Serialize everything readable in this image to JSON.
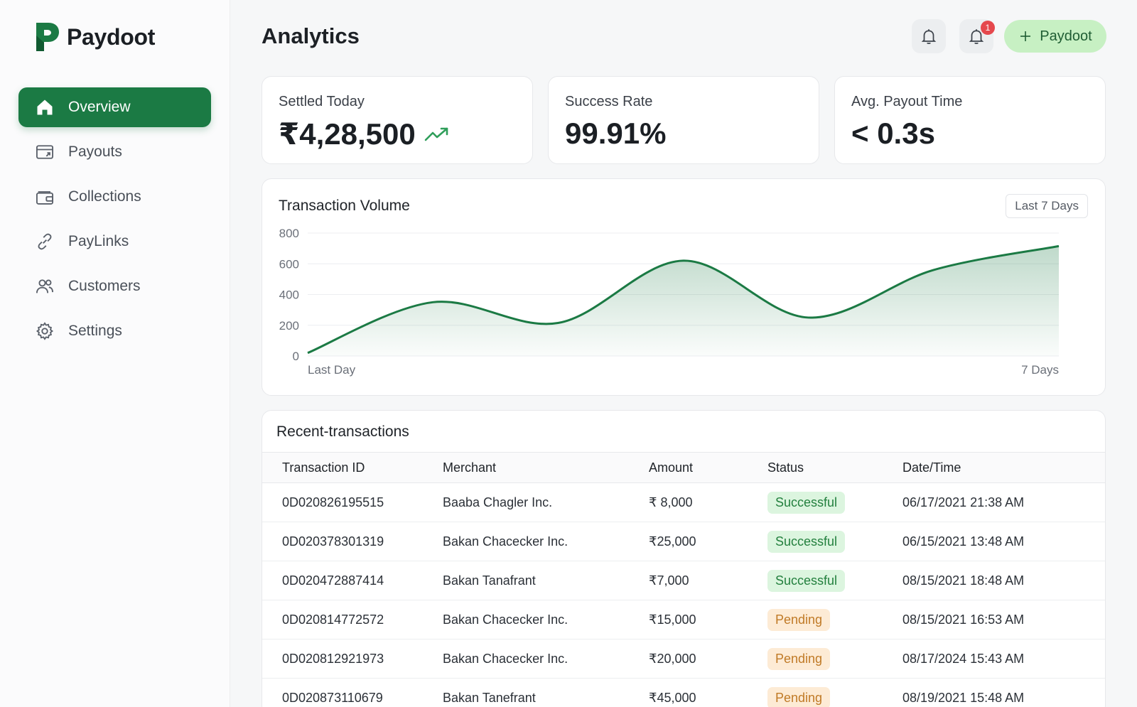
{
  "brand": {
    "name": "Paydoot",
    "color": "#1b7a44"
  },
  "sidebar": {
    "items": [
      {
        "label": "Overview",
        "icon": "home-icon",
        "active": true
      },
      {
        "label": "Payouts",
        "icon": "payout-card-icon",
        "active": false
      },
      {
        "label": "Collections",
        "icon": "wallet-icon",
        "active": false
      },
      {
        "label": "PayLinks",
        "icon": "link-icon",
        "active": false
      },
      {
        "label": "Customers",
        "icon": "users-icon",
        "active": false
      },
      {
        "label": "Settings",
        "icon": "gear-icon",
        "active": false
      }
    ]
  },
  "header": {
    "title": "Analytics",
    "notification_badge": "1",
    "cta_label": "Paydoot"
  },
  "kpis": [
    {
      "label": "Settled Today",
      "value": "₹4,28,500",
      "trend": "up"
    },
    {
      "label": "Success Rate",
      "value": "99.91%"
    },
    {
      "label": "Avg. Payout Time",
      "value": "< 0.3s"
    }
  ],
  "chart": {
    "range_label": "Last 7 Days"
  },
  "chart_data": {
    "type": "area",
    "title": "Transaction Volume",
    "x_tick_labels": [
      "Last Day",
      "7 Days"
    ],
    "x": [
      1,
      2,
      3,
      4,
      5,
      6,
      7
    ],
    "series": [
      {
        "values": [
          20,
          350,
          215,
          620,
          250,
          560,
          715
        ]
      }
    ],
    "yticks": [
      0,
      200,
      400,
      600,
      800
    ],
    "ylim": [
      0,
      800
    ],
    "grid": true,
    "color": "#1b7a44"
  },
  "transactions": {
    "title": "Recent-transactions",
    "columns": [
      "Transaction ID",
      "Merchant",
      "Amount",
      "Status",
      "Date/Time"
    ],
    "rows": [
      {
        "id": "0D020826195515",
        "merchant": "Baaba Chagler Inc.",
        "amount": "₹ 8,000",
        "status": "Successful",
        "datetime": "06/17/2021 21:38 AM"
      },
      {
        "id": "0D020378301319",
        "merchant": "Bakan Chacecker Inc.",
        "amount": "₹25,000",
        "status": "Successful",
        "datetime": "06/15/2021 13:48 AM"
      },
      {
        "id": "0D020472887414",
        "merchant": "Bakan Tanafrant",
        "amount": "₹7,000",
        "status": "Successful",
        "datetime": "08/15/2021 18:48 AM"
      },
      {
        "id": "0D020814772572",
        "merchant": "Bakan Chacecker Inc.",
        "amount": "₹15,000",
        "status": "Pending",
        "datetime": "08/15/2021 16:53 AM"
      },
      {
        "id": "0D020812921973",
        "merchant": "Bakan Chacecker Inc.",
        "amount": "₹20,000",
        "status": "Pending",
        "datetime": "08/17/2024 15:43 AM"
      },
      {
        "id": "0D020873110679",
        "merchant": "Bakan Tanefrant",
        "amount": "₹45,000",
        "status": "Pending",
        "datetime": "08/19/2021 15:48 AM"
      }
    ]
  }
}
